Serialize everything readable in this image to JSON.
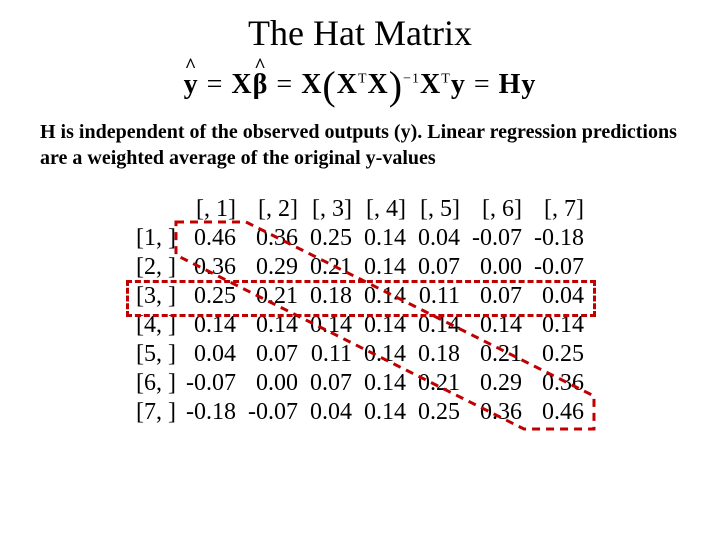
{
  "title": "The Hat Matrix",
  "equation_parts": {
    "y_hat": "y",
    "eq1": " = ",
    "X": "X",
    "beta_hat": "β",
    "eq2": " = ",
    "X2": "X",
    "lp": "(",
    "Xt": "X",
    "T": "T",
    "X3": "X",
    "rp": ")",
    "inv": "−1",
    "Xt2": "X",
    "T2": "T",
    "y": "y",
    "eq3": " = ",
    "H": "H",
    "y2": "y"
  },
  "subtitle": "H is independent of the observed outputs (y). Linear regression predictions are a weighted average of the original y-values",
  "matrix": {
    "col_headers": [
      "[, 1]",
      "[, 2]",
      "[, 3]",
      "[, 4]",
      "[, 5]",
      "[, 6]",
      "[, 7]"
    ],
    "row_headers": [
      "[1, ]",
      "[2, ]",
      "[3, ]",
      "[4, ]",
      "[5, ]",
      "[6, ]",
      "[7, ]"
    ],
    "rows": [
      [
        "0.46",
        "0.36",
        "0.25",
        "0.14",
        "0.04",
        "-0.07",
        "-0.18"
      ],
      [
        "0.36",
        "0.29",
        "0.21",
        "0.14",
        "0.07",
        "0.00",
        "-0.07"
      ],
      [
        "0.25",
        "0.21",
        "0.18",
        "0.14",
        "0.11",
        "0.07",
        "0.04"
      ],
      [
        "0.14",
        "0.14",
        "0.14",
        "0.14",
        "0.14",
        "0.14",
        "0.14"
      ],
      [
        "0.04",
        "0.07",
        "0.11",
        "0.14",
        "0.18",
        "0.21",
        "0.25"
      ],
      [
        "-0.07",
        "0.00",
        "0.07",
        "0.14",
        "0.21",
        "0.29",
        "0.36"
      ],
      [
        "-0.18",
        "-0.07",
        "0.04",
        "0.14",
        "0.25",
        "0.36",
        "0.46"
      ]
    ]
  },
  "highlight": {
    "row_index": 2,
    "border_color": "#c00000",
    "dash": "3px dashed"
  },
  "diagonal_line": {
    "color": "#c00000",
    "dash": "3px dashed"
  }
}
